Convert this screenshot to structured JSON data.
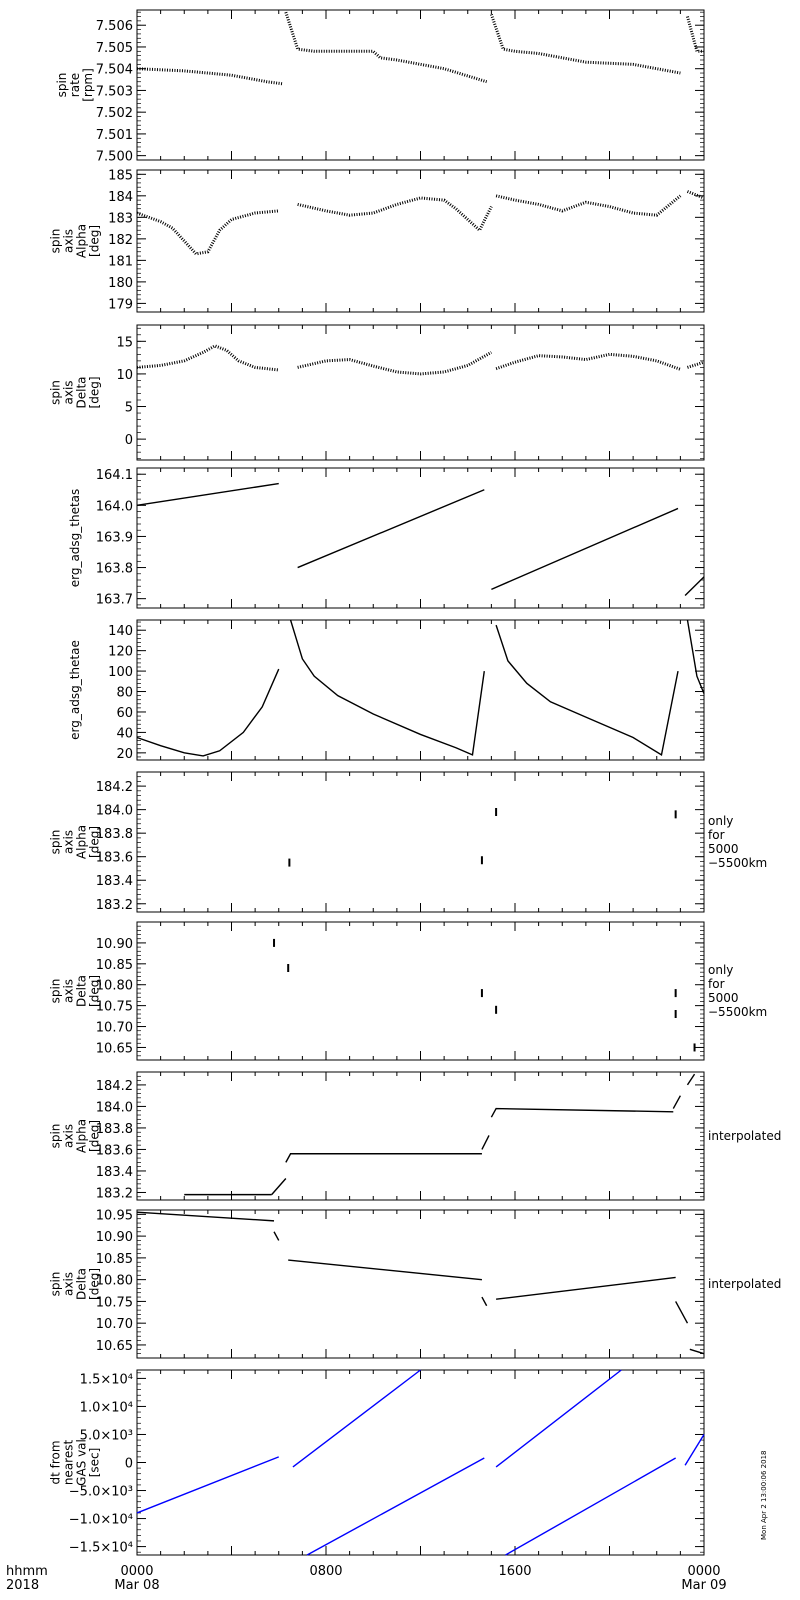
{
  "figure": {
    "colors": {
      "ink": "#000000",
      "dt_series": "#0000ff",
      "background": "#ffffff"
    },
    "footer": {
      "format_label": "hhmm",
      "year_label": "2018",
      "x_ticks": [
        {
          "label": "0000",
          "sub": "Mar 08"
        },
        {
          "label": "0800",
          "sub": ""
        },
        {
          "label": "1600",
          "sub": ""
        },
        {
          "label": "0000",
          "sub": "Mar 09"
        }
      ]
    },
    "timestamp_note": "Mon Apr  2 13:00:06 2018"
  },
  "chart_data": [
    {
      "id": "spin-rate",
      "type": "scatter",
      "ylabel": [
        "spin",
        "rate",
        "[rpm]"
      ],
      "ylim": [
        7.4998,
        7.5067
      ],
      "ytick_values": [
        7.5,
        7.501,
        7.502,
        7.503,
        7.504,
        7.505,
        7.506
      ],
      "ytick_labels": [
        "7.500",
        "7.501",
        "7.502",
        "7.503",
        "7.504",
        "7.505",
        "7.506"
      ],
      "xlim_hours": [
        0,
        24
      ],
      "right_note": [],
      "segments": [
        {
          "x": [
            0,
            2.0,
            4.0,
            5.5,
            6.2
          ],
          "y": [
            7.504,
            7.5039,
            7.5037,
            7.5034,
            7.5033
          ]
        },
        {
          "x": [
            6.3,
            6.8,
            7.5,
            10.0,
            10.3,
            11.0,
            13.0,
            14.8
          ],
          "y": [
            7.5066,
            7.5049,
            7.5048,
            7.5048,
            7.5045,
            7.5044,
            7.504,
            7.5034
          ]
        },
        {
          "x": [
            15.0,
            15.5,
            16.0,
            17.0,
            19.0,
            21.0,
            23.0
          ],
          "y": [
            7.5065,
            7.5049,
            7.5048,
            7.5047,
            7.5043,
            7.5042,
            7.5038
          ]
        },
        {
          "x": [
            23.3,
            23.7,
            24.0
          ],
          "y": [
            7.5064,
            7.5048,
            7.5048
          ]
        }
      ]
    },
    {
      "id": "spin-axis-alpha",
      "type": "scatter",
      "ylabel": [
        "spin",
        "axis",
        "Alpha",
        "[deg]"
      ],
      "ylim": [
        178.6,
        185.2
      ],
      "ytick_values": [
        179,
        180,
        181,
        182,
        183,
        184,
        185
      ],
      "ytick_labels": [
        "179",
        "180",
        "181",
        "182",
        "183",
        "184",
        "185"
      ],
      "xlim_hours": [
        0,
        24
      ],
      "right_note": [],
      "segments": [
        {
          "x": [
            0,
            0.5,
            1.0,
            1.5,
            2.0,
            2.5,
            3.0,
            3.5,
            4.0,
            5.0,
            6.0
          ],
          "y": [
            183.2,
            183.0,
            182.8,
            182.5,
            181.9,
            181.3,
            181.4,
            182.4,
            182.9,
            183.2,
            183.3
          ]
        },
        {
          "x": [
            6.8,
            8.0,
            9.0,
            10.0,
            11.0,
            12.0,
            13.0,
            13.5,
            14.0,
            14.5,
            15.0
          ],
          "y": [
            183.6,
            183.3,
            183.1,
            183.2,
            183.6,
            183.9,
            183.8,
            183.4,
            182.9,
            182.4,
            183.5
          ]
        },
        {
          "x": [
            15.2,
            16.0,
            17.0,
            18.0,
            19.0,
            20.0,
            21.0,
            22.0,
            23.0
          ],
          "y": [
            184.0,
            183.8,
            183.6,
            183.3,
            183.7,
            183.5,
            183.2,
            183.1,
            184.0
          ]
        },
        {
          "x": [
            23.3,
            24.0
          ],
          "y": [
            184.2,
            183.9
          ]
        }
      ]
    },
    {
      "id": "spin-axis-delta",
      "type": "scatter",
      "ylabel": [
        "spin",
        "axis",
        "Delta",
        "[deg]"
      ],
      "ylim": [
        -3.2,
        17.5
      ],
      "ytick_values": [
        0,
        5,
        10,
        15
      ],
      "ytick_labels": [
        "0",
        "5",
        "10",
        "15"
      ],
      "xlim_hours": [
        0,
        24
      ],
      "right_note": [],
      "segments": [
        {
          "x": [
            0,
            1.0,
            2.0,
            2.8,
            3.3,
            3.8,
            4.3,
            5.0,
            6.0
          ],
          "y": [
            11.0,
            11.3,
            12.0,
            13.3,
            14.3,
            13.6,
            12.0,
            11.0,
            10.6
          ]
        },
        {
          "x": [
            6.8,
            8.0,
            9.0,
            10.0,
            11.0,
            12.0,
            13.0,
            14.0,
            14.5,
            15.0
          ],
          "y": [
            11.0,
            12.0,
            12.2,
            11.2,
            10.3,
            10.0,
            10.3,
            11.3,
            12.3,
            13.3
          ]
        },
        {
          "x": [
            15.2,
            16.0,
            17.0,
            18.0,
            19.0,
            20.0,
            21.0,
            22.0,
            23.0
          ],
          "y": [
            10.8,
            11.8,
            12.8,
            12.6,
            12.2,
            13.0,
            12.7,
            12.0,
            10.7
          ]
        },
        {
          "x": [
            23.3,
            24.0
          ],
          "y": [
            11.0,
            11.8
          ]
        }
      ]
    },
    {
      "id": "erg-adsg-thetas",
      "type": "line",
      "ylabel": [
        "erg_adsg_thetas"
      ],
      "ylim": [
        163.67,
        164.12
      ],
      "ytick_values": [
        163.7,
        163.8,
        163.9,
        164.0,
        164.1
      ],
      "ytick_labels": [
        "163.7",
        "163.8",
        "163.9",
        "164.0",
        "164.1"
      ],
      "xlim_hours": [
        0,
        24
      ],
      "right_note": [],
      "segments": [
        {
          "x": [
            0,
            6.0
          ],
          "y": [
            164.0,
            164.07
          ]
        },
        {
          "x": [
            6.8,
            14.7
          ],
          "y": [
            163.8,
            164.05
          ]
        },
        {
          "x": [
            15.0,
            22.9
          ],
          "y": [
            163.73,
            163.99
          ]
        },
        {
          "x": [
            23.2,
            24.0
          ],
          "y": [
            163.71,
            163.77
          ]
        }
      ]
    },
    {
      "id": "erg-adsg-thetae",
      "type": "line",
      "ylabel": [
        "erg_adsg_thetae"
      ],
      "ylim": [
        13,
        150
      ],
      "ytick_values": [
        20,
        40,
        60,
        80,
        100,
        120,
        140
      ],
      "ytick_labels": [
        "20",
        "40",
        "60",
        "80",
        "100",
        "120",
        "140"
      ],
      "xlim_hours": [
        0,
        24
      ],
      "right_note": [],
      "segments": [
        {
          "x": [
            0,
            1.0,
            2.0,
            2.8,
            3.5,
            4.5,
            5.3,
            6.0
          ],
          "y": [
            35,
            27,
            20,
            17,
            22,
            40,
            65,
            102
          ]
        },
        {
          "x": [
            6.5,
            7.0,
            7.5,
            8.5,
            10.0,
            12.0,
            13.5,
            14.2,
            14.7
          ],
          "y": [
            150,
            112,
            95,
            76,
            58,
            38,
            25,
            18,
            100
          ]
        },
        {
          "x": [
            15.2,
            15.7,
            16.5,
            17.5,
            19.0,
            21.0,
            22.2,
            22.9
          ],
          "y": [
            145,
            110,
            88,
            70,
            55,
            35,
            18,
            100
          ]
        },
        {
          "x": [
            23.3,
            23.7,
            24.0
          ],
          "y": [
            150,
            95,
            78
          ]
        }
      ]
    },
    {
      "id": "spin-axis-alpha-5000",
      "type": "scatter",
      "ylabel": [
        "spin",
        "axis",
        "Alpha",
        "[deg]"
      ],
      "ylim": [
        183.13,
        184.32
      ],
      "ytick_values": [
        183.2,
        183.4,
        183.6,
        183.8,
        184.0,
        184.2
      ],
      "ytick_labels": [
        "183.2",
        "183.4",
        "183.6",
        "183.8",
        "184.0",
        "184.2"
      ],
      "xlim_hours": [
        0,
        24
      ],
      "right_note": [
        "only",
        "for",
        "5000",
        "−5500km"
      ],
      "segments": [
        {
          "x": [
            6.45
          ],
          "y": [
            183.55
          ]
        },
        {
          "x": [
            14.6
          ],
          "y": [
            183.57
          ]
        },
        {
          "x": [
            15.2
          ],
          "y": [
            183.98
          ]
        },
        {
          "x": [
            22.8
          ],
          "y": [
            183.96
          ]
        }
      ]
    },
    {
      "id": "spin-axis-delta-5000",
      "type": "scatter",
      "ylabel": [
        "spin",
        "axis",
        "Delta",
        "[deg]"
      ],
      "ylim": [
        10.62,
        10.95
      ],
      "ytick_values": [
        10.65,
        10.7,
        10.75,
        10.8,
        10.85,
        10.9
      ],
      "ytick_labels": [
        "10.65",
        "10.70",
        "10.75",
        "10.80",
        "10.85",
        "10.90"
      ],
      "xlim_hours": [
        0,
        24
      ],
      "right_note": [
        "only",
        "for",
        "5000",
        "−5500km"
      ],
      "segments": [
        {
          "x": [
            5.8
          ],
          "y": [
            10.9
          ]
        },
        {
          "x": [
            6.4
          ],
          "y": [
            10.84
          ]
        },
        {
          "x": [
            14.6
          ],
          "y": [
            10.78
          ]
        },
        {
          "x": [
            15.2
          ],
          "y": [
            10.74
          ]
        },
        {
          "x": [
            22.8
          ],
          "y": [
            10.78
          ]
        },
        {
          "x": [
            22.8
          ],
          "y": [
            10.73
          ]
        },
        {
          "x": [
            23.6
          ],
          "y": [
            10.65
          ]
        }
      ]
    },
    {
      "id": "spin-axis-alpha-interp",
      "type": "line",
      "ylabel": [
        "spin",
        "axis",
        "Alpha",
        "[deg]"
      ],
      "ylim": [
        183.13,
        184.32
      ],
      "ytick_values": [
        183.2,
        183.4,
        183.6,
        183.8,
        184.0,
        184.2
      ],
      "ytick_labels": [
        "183.2",
        "183.4",
        "183.6",
        "183.8",
        "184.0",
        "184.2"
      ],
      "xlim_hours": [
        0,
        24
      ],
      "right_note": [
        "interpolated"
      ],
      "segments": [
        {
          "x": [
            2.0,
            5.7
          ],
          "y": [
            183.18,
            183.18
          ]
        },
        {
          "x": [
            5.7,
            6.3
          ],
          "y": [
            183.18,
            183.33
          ]
        },
        {
          "x": [
            6.3,
            6.5,
            14.6
          ],
          "y": [
            183.48,
            183.56,
            183.56
          ]
        },
        {
          "x": [
            14.6,
            14.9
          ],
          "y": [
            183.6,
            183.73
          ]
        },
        {
          "x": [
            15.0,
            15.2,
            22.7
          ],
          "y": [
            183.9,
            183.98,
            183.95
          ]
        },
        {
          "x": [
            22.7,
            23.0
          ],
          "y": [
            183.98,
            184.1
          ]
        },
        {
          "x": [
            23.3,
            23.6
          ],
          "y": [
            184.2,
            184.3
          ]
        }
      ]
    },
    {
      "id": "spin-axis-delta-interp",
      "type": "line",
      "ylabel": [
        "spin",
        "axis",
        "Delta",
        "[deg]"
      ],
      "ylim": [
        10.62,
        10.96
      ],
      "ytick_values": [
        10.65,
        10.7,
        10.75,
        10.8,
        10.85,
        10.9,
        10.95
      ],
      "ytick_labels": [
        "10.65",
        "10.70",
        "10.75",
        "10.80",
        "10.85",
        "10.90",
        "10.95"
      ],
      "xlim_hours": [
        0,
        24
      ],
      "right_note": [
        "interpolated"
      ],
      "segments": [
        {
          "x": [
            0,
            5.8
          ],
          "y": [
            10.955,
            10.935
          ]
        },
        {
          "x": [
            5.8,
            6.0
          ],
          "y": [
            10.91,
            10.89
          ]
        },
        {
          "x": [
            6.4,
            14.6
          ],
          "y": [
            10.845,
            10.8
          ]
        },
        {
          "x": [
            14.6,
            14.8
          ],
          "y": [
            10.76,
            10.74
          ]
        },
        {
          "x": [
            15.2,
            22.8
          ],
          "y": [
            10.755,
            10.805
          ]
        },
        {
          "x": [
            22.8,
            23.3
          ],
          "y": [
            10.75,
            10.7
          ]
        },
        {
          "x": [
            23.4,
            24.0
          ],
          "y": [
            10.64,
            10.63
          ]
        }
      ]
    },
    {
      "id": "dt-from-nearest",
      "type": "line",
      "ylabel": [
        "dt from",
        "nearest",
        "GAS val",
        "[sec]"
      ],
      "ylim": [
        -16500,
        16500
      ],
      "ytick_values": [
        -15000,
        -10000,
        -5000,
        0,
        5000,
        10000,
        15000
      ],
      "ytick_labels": [
        "−1.5×10⁴",
        "−1.0×10⁴",
        "−5.0×10³",
        "0",
        "5.0×10³",
        "1.0×10⁴",
        "1.5×10⁴"
      ],
      "xlim_hours": [
        0,
        24
      ],
      "right_note": [],
      "color": "#0000ff",
      "segments": [
        {
          "x": [
            0,
            6.0
          ],
          "y": [
            -9000,
            1000
          ]
        },
        {
          "x": [
            6.6,
            12.0
          ],
          "y": [
            -800,
            16500
          ]
        },
        {
          "x": [
            7.2,
            14.7
          ],
          "y": [
            -16500,
            800
          ]
        },
        {
          "x": [
            15.2,
            20.5
          ],
          "y": [
            -800,
            16500
          ]
        },
        {
          "x": [
            15.6,
            22.8
          ],
          "y": [
            -16500,
            800
          ]
        },
        {
          "x": [
            23.2,
            24.0
          ],
          "y": [
            -500,
            5000
          ]
        }
      ]
    }
  ]
}
